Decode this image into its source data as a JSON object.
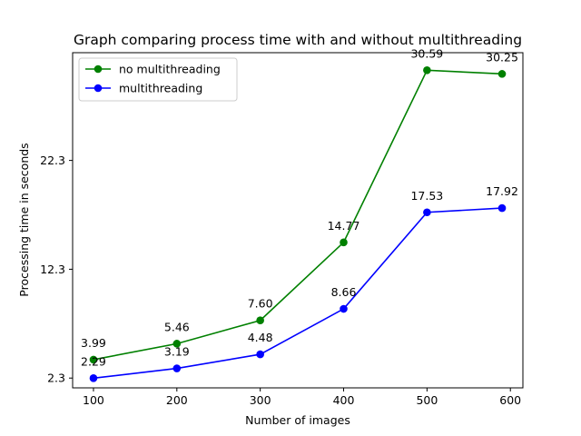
{
  "chart_data": {
    "type": "line",
    "title": "Graph comparing process time with and without multithreading",
    "xlabel": "Number of images",
    "ylabel": "Processing time in seconds",
    "x": [
      100,
      200,
      300,
      400,
      500,
      590
    ],
    "xticks": [
      100,
      200,
      300,
      400,
      500,
      600
    ],
    "yticks": [
      2.3,
      12.3,
      22.3
    ],
    "ytick_labels": [
      "2.3",
      "12.3",
      "22.3"
    ],
    "xlim": [
      75,
      615
    ],
    "ylim": [
      1.4,
      32.2
    ],
    "legend_position": "upper-left",
    "grid": false,
    "series": [
      {
        "name": "no multithreading",
        "color": "#008000",
        "marker": "circle",
        "values": [
          3.99,
          5.46,
          7.6,
          14.77,
          30.59,
          30.25
        ],
        "labels": [
          "3.99",
          "5.46",
          "7.60",
          "14.77",
          "30.59",
          "30.25"
        ]
      },
      {
        "name": "multithreading",
        "color": "#0000ff",
        "marker": "circle",
        "values": [
          2.29,
          3.19,
          4.48,
          8.66,
          17.53,
          17.92
        ],
        "labels": [
          "2.29",
          "3.19",
          "4.48",
          "8.66",
          "17.53",
          "17.92"
        ]
      }
    ]
  }
}
